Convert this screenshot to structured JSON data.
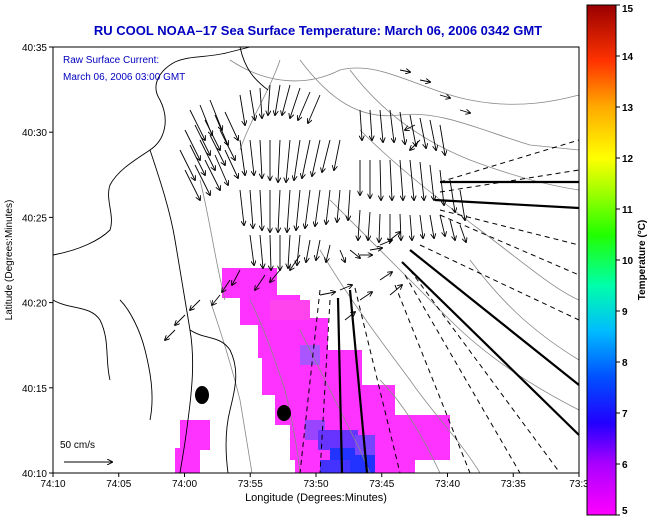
{
  "header": {
    "title": "RU COOL  NOAA–17  Sea Surface Temperature:  March 06, 2006 0342 GMT"
  },
  "map": {
    "annotation_line1": "Raw Surface Current:",
    "annotation_line2": "March 06, 2006 03:00 GMT",
    "scale_label": "50 cm/s",
    "xlabel": "Longitude (Degrees:Minutes)",
    "ylabel": "Latitude (Degrees:Minutes)",
    "x_ticks": [
      "74:10",
      "74:05",
      "74:00",
      "73:55",
      "73:50",
      "73:45",
      "73:40",
      "73:35",
      "73:3"
    ],
    "y_ticks": [
      "40:35",
      "40:30",
      "40:25",
      "40:20",
      "40:15",
      "40:10"
    ],
    "colors": {
      "title": "#0000c0",
      "annotation": "#0000c0",
      "sst_cold": "#ff33ff",
      "sst_cool": "#8844ff",
      "sst_blue": "#2233ff"
    }
  },
  "colorbar": {
    "label": "Temperature (°C)",
    "ticks": [
      "15",
      "14",
      "13",
      "12",
      "11",
      "10",
      "9",
      "8",
      "7",
      "6",
      "5"
    ]
  }
}
